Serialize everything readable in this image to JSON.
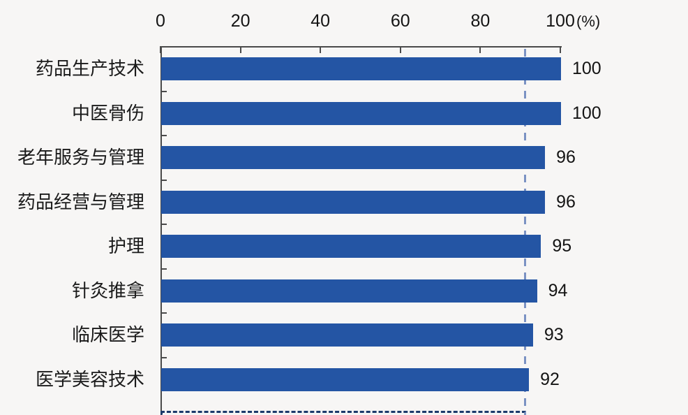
{
  "chart_data": {
    "type": "bar",
    "orientation": "horizontal",
    "title": "",
    "unit_label": "(%)",
    "categories": [
      "药品生产技术",
      "中医骨伤",
      "老年服务与管理",
      "药品经营与管理",
      "护理",
      "针灸推拿",
      "临床医学",
      "医学美容技术"
    ],
    "values": [
      100,
      100,
      96,
      96,
      95,
      94,
      93,
      92
    ],
    "value_labels": [
      "100",
      "100",
      "96",
      "96",
      "95",
      "94",
      "93",
      "92"
    ],
    "x_axis": {
      "position": "top",
      "min": 0,
      "max": 100,
      "ticks": [
        0,
        20,
        40,
        60,
        80,
        100
      ]
    },
    "reference_line": {
      "value": 91,
      "style": "dashed",
      "color": "#7b92c3"
    },
    "partial_bottom_bar": {
      "value": 91,
      "style": "dashed-outline",
      "color": "#1b3a6b"
    },
    "legend": null,
    "grid": false
  },
  "colors": {
    "bar": "#2455a4",
    "axis": "#4a4a4a",
    "text": "#141414",
    "background": "#f7f6f5",
    "reference_line": "#7b92c3",
    "partial_bar_border": "#1b3a6b"
  }
}
